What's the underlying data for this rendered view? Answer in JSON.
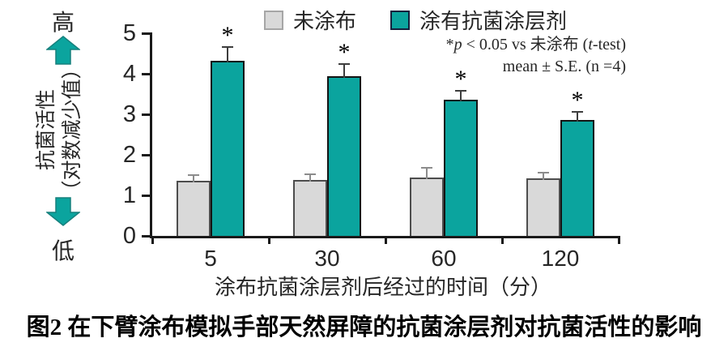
{
  "indicator": {
    "high": "高",
    "low": "低"
  },
  "y_axis_title": {
    "line1": "抗菌活性",
    "line2": "（对数减少值）"
  },
  "legend": [
    {
      "label": "未涂布",
      "color": "#d9d9d9"
    },
    {
      "label": "涂有抗菌涂层剂",
      "color": "#0ba49e"
    }
  ],
  "annotation": {
    "l1_star": "*",
    "l1_p": "p",
    "l1_mid": " < 0.05 vs 未涂布 (",
    "l1_t": "t",
    "l1_end": "-test)",
    "line2": "mean ± S.E. (n =4)"
  },
  "caption": "图2  在下臂涂布模拟手部天然屏障的抗菌涂层剂对抗菌活性的影响",
  "arrow_color": "#0ba49e",
  "chart_data": {
    "type": "bar",
    "title": "",
    "categories": [
      "5",
      "30",
      "60",
      "120"
    ],
    "series": [
      {
        "name": "未涂布",
        "color": "#d9d9d9",
        "error_color": "#8c8c8c",
        "values": [
          1.33,
          1.35,
          1.4,
          1.38
        ],
        "errors": [
          0.2,
          0.2,
          0.3,
          0.2
        ],
        "significant": [
          false,
          false,
          false,
          false
        ]
      },
      {
        "name": "涂有抗菌涂层剂",
        "color": "#0ba49e",
        "error_color": "#3d3d3d",
        "values": [
          4.28,
          3.9,
          3.32,
          2.83
        ],
        "errors": [
          0.4,
          0.37,
          0.28,
          0.26
        ],
        "significant": [
          true,
          true,
          true,
          true
        ]
      }
    ],
    "xlabel": "涂布抗菌涂层剂后经过的时间（分）",
    "ylabel": "抗菌活性（对数减少值）",
    "ylim": [
      0,
      5
    ],
    "yticks": [
      0,
      1,
      2,
      3,
      4,
      5
    ],
    "grid": false,
    "legend_position": "top",
    "sig_marker": "*",
    "sig_note": "*p < 0.05 vs 未涂布 (t-test)",
    "error_note": "mean ± S.E. (n =4)"
  }
}
